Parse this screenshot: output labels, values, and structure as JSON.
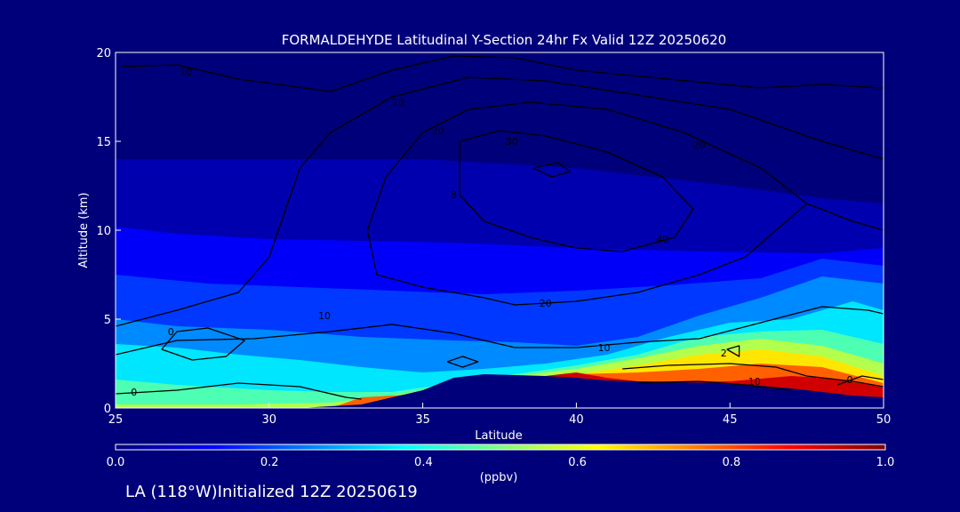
{
  "chart_data": {
    "type": "heatmap",
    "title": "FORMALDEHYDE Latitudinal Y-Section 24hr  Fx Valid 12Z 20250620",
    "xlabel": "Latitude",
    "ylabel": "Altitude (km)",
    "xlim": [
      25,
      50
    ],
    "ylim": [
      0,
      20
    ],
    "x_ticks": [
      "25",
      "30",
      "35",
      "40",
      "45",
      "50"
    ],
    "y_ticks": [
      "0",
      "5",
      "10",
      "15",
      "20"
    ],
    "colorbar": {
      "label": "(ppbv)",
      "range": [
        0.0,
        1.0
      ],
      "ticks": [
        "0.0",
        "0.2",
        "0.4",
        "0.6",
        "0.8",
        "1.0"
      ],
      "colormap": [
        "#00007a",
        "#0000ff",
        "#0080ff",
        "#00ffff",
        "#80ff80",
        "#ffff00",
        "#ff8000",
        "#ff0000",
        "#800000"
      ]
    },
    "field_bands": [
      {
        "level": 0.05,
        "boundary": [
          [
            25,
            14.0
          ],
          [
            30,
            14.0
          ],
          [
            35,
            14.0
          ],
          [
            40,
            13.5
          ],
          [
            45,
            12.5
          ],
          [
            48,
            11.8
          ],
          [
            50,
            11.5
          ]
        ]
      },
      {
        "level": 0.12,
        "boundary": [
          [
            25,
            10.2
          ],
          [
            27,
            9.8
          ],
          [
            30,
            9.5
          ],
          [
            33,
            9.4
          ],
          [
            36,
            9.3
          ],
          [
            40,
            9.0
          ],
          [
            44,
            8.8
          ],
          [
            48,
            8.7
          ],
          [
            50,
            9.0
          ]
        ]
      },
      {
        "level": 0.18,
        "boundary": [
          [
            25,
            7.5
          ],
          [
            28,
            7.0
          ],
          [
            31,
            6.8
          ],
          [
            34,
            6.6
          ],
          [
            37,
            6.4
          ],
          [
            40,
            6.6
          ],
          [
            43,
            6.9
          ],
          [
            46,
            7.3
          ],
          [
            48,
            8.4
          ],
          [
            50,
            8.0
          ]
        ]
      },
      {
        "level": 0.26,
        "boundary": [
          [
            25,
            5.0
          ],
          [
            27,
            4.6
          ],
          [
            30,
            4.4
          ],
          [
            33,
            4.0
          ],
          [
            36,
            3.8
          ],
          [
            38,
            3.7
          ],
          [
            40,
            3.5
          ],
          [
            42,
            4.0
          ],
          [
            44,
            5.2
          ],
          [
            46,
            6.2
          ],
          [
            48,
            7.4
          ],
          [
            50,
            7.0
          ]
        ]
      },
      {
        "level": 0.35,
        "boundary": [
          [
            25,
            3.6
          ],
          [
            27,
            3.4
          ],
          [
            29,
            3.0
          ],
          [
            31,
            2.7
          ],
          [
            33,
            2.3
          ],
          [
            35,
            2.0
          ],
          [
            37,
            2.2
          ],
          [
            39,
            2.5
          ],
          [
            41,
            3.0
          ],
          [
            43,
            4.0
          ],
          [
            45,
            4.8
          ],
          [
            47,
            5.0
          ],
          [
            49,
            6.0
          ],
          [
            50,
            5.5
          ]
        ]
      },
      {
        "level": 0.45,
        "boundary": [
          [
            25,
            1.6
          ],
          [
            27,
            1.3
          ],
          [
            30,
            1.0
          ],
          [
            32,
            0.9
          ],
          [
            34,
            0.9
          ],
          [
            36,
            1.4
          ],
          [
            38,
            1.9
          ],
          [
            40,
            2.4
          ],
          [
            42,
            3.0
          ],
          [
            44,
            4.0
          ],
          [
            46,
            4.3
          ],
          [
            48,
            4.4
          ],
          [
            50,
            3.6
          ]
        ]
      },
      {
        "level": 0.55,
        "boundary": [
          [
            25,
            0.2
          ],
          [
            29,
            0.2
          ],
          [
            32,
            0.3
          ],
          [
            34,
            0.7
          ],
          [
            36,
            1.3
          ],
          [
            38,
            1.8
          ],
          [
            40,
            2.2
          ],
          [
            42,
            2.8
          ],
          [
            44,
            3.5
          ],
          [
            46,
            3.9
          ],
          [
            48,
            3.5
          ],
          [
            50,
            2.5
          ]
        ]
      },
      {
        "level": 0.65,
        "boundary": [
          [
            32,
            0.0
          ],
          [
            33,
            0.3
          ],
          [
            35,
            0.8
          ],
          [
            38,
            1.4
          ],
          [
            40,
            1.9
          ],
          [
            42,
            2.4
          ],
          [
            44,
            3.0
          ],
          [
            46,
            3.3
          ],
          [
            48,
            2.9
          ],
          [
            50,
            1.8
          ]
        ]
      },
      {
        "level": 0.78,
        "boundary": [
          [
            32,
            0.0
          ],
          [
            33,
            0.6
          ],
          [
            35,
            0.8
          ],
          [
            38,
            1.4
          ],
          [
            40,
            1.9
          ],
          [
            42,
            2.0
          ],
          [
            44,
            2.2
          ],
          [
            46,
            2.5
          ],
          [
            48,
            2.3
          ],
          [
            50,
            1.4
          ]
        ]
      },
      {
        "level": 0.92,
        "boundary": [
          [
            38,
            1.6
          ],
          [
            40,
            2.0
          ],
          [
            41,
            1.7
          ],
          [
            42,
            1.5
          ],
          [
            45,
            1.5
          ],
          [
            47,
            1.8
          ],
          [
            48,
            1.7
          ],
          [
            50,
            1.2
          ]
        ]
      }
    ],
    "terrain": [
      [
        25,
        0
      ],
      [
        31,
        0
      ],
      [
        33,
        0.2
      ],
      [
        35,
        1.0
      ],
      [
        36,
        1.7
      ],
      [
        37,
        1.9
      ],
      [
        38,
        1.85
      ],
      [
        39,
        1.8
      ],
      [
        40,
        1.7
      ],
      [
        41,
        1.55
      ],
      [
        43,
        1.45
      ],
      [
        45,
        1.4
      ],
      [
        47,
        1.1
      ],
      [
        49,
        0.7
      ],
      [
        50,
        0.6
      ]
    ],
    "contours": [
      {
        "label": "10",
        "points": [
          [
            25.0,
            4.6
          ],
          [
            27.0,
            5.5
          ],
          [
            29.0,
            6.5
          ],
          [
            30.0,
            8.5
          ],
          [
            30.5,
            11
          ],
          [
            31.0,
            13.5
          ],
          [
            32.0,
            15.5
          ],
          [
            34.0,
            17.5
          ],
          [
            36.5,
            18.6
          ],
          [
            39.0,
            18.4
          ],
          [
            42.0,
            17.6
          ],
          [
            45.0,
            16.8
          ],
          [
            48.0,
            15.0
          ],
          [
            50.0,
            14.0
          ]
        ]
      },
      {
        "label": "10",
        "points": [
          [
            25.2,
            19.2
          ],
          [
            27,
            19.3
          ],
          [
            29,
            18.5
          ],
          [
            32,
            17.8
          ],
          [
            34,
            19.0
          ],
          [
            36,
            19.8
          ],
          [
            38,
            19.7
          ],
          [
            40,
            19.0
          ],
          [
            43,
            18.5
          ],
          [
            46,
            18.0
          ],
          [
            48,
            18.2
          ],
          [
            50,
            18.0
          ]
        ]
      },
      {
        "label": "20",
        "points": [
          [
            33.5,
            7.5
          ],
          [
            33.2,
            10
          ],
          [
            33.8,
            13
          ],
          [
            35,
            15.5
          ],
          [
            36.5,
            16.8
          ],
          [
            38.5,
            17.2
          ],
          [
            41,
            16.8
          ],
          [
            43.5,
            15.5
          ],
          [
            46.0,
            13.5
          ],
          [
            47.5,
            11.5
          ],
          [
            49.0,
            10.5
          ],
          [
            50.0,
            10.0
          ]
        ]
      },
      {
        "label": "20",
        "points": [
          [
            33.5,
            7.5
          ],
          [
            35,
            6.8
          ],
          [
            37,
            6.2
          ],
          [
            38,
            5.8
          ],
          [
            40,
            6.0
          ],
          [
            42,
            6.5
          ],
          [
            44,
            7.5
          ],
          [
            45.5,
            8.5
          ],
          [
            46.5,
            10
          ],
          [
            47.5,
            11.5
          ]
        ]
      },
      {
        "label": "30",
        "points": [
          [
            36.2,
            15
          ],
          [
            37.5,
            15.6
          ],
          [
            39,
            15.3
          ],
          [
            41,
            14.4
          ],
          [
            42.8,
            13.0
          ],
          [
            43.8,
            11.2
          ],
          [
            43.2,
            9.6
          ],
          [
            41.5,
            8.8
          ],
          [
            40,
            9.0
          ],
          [
            38.5,
            9.6
          ],
          [
            37.0,
            10.5
          ],
          [
            36.2,
            12.0
          ],
          [
            36.2,
            15
          ]
        ]
      },
      {
        "label": "30",
        "points": [
          [
            38.6,
            13.5
          ],
          [
            39.4,
            13.8
          ],
          [
            39.8,
            13.3
          ],
          [
            39.2,
            13.0
          ],
          [
            38.6,
            13.5
          ]
        ]
      },
      {
        "label": "10",
        "points": [
          [
            25.0,
            3.0
          ],
          [
            27.0,
            3.8
          ],
          [
            29.5,
            3.9
          ],
          [
            32.0,
            4.3
          ],
          [
            34.0,
            4.7
          ],
          [
            36.0,
            4.2
          ],
          [
            38.0,
            3.4
          ],
          [
            40.0,
            3.4
          ],
          [
            42.0,
            3.7
          ],
          [
            44.0,
            3.9
          ],
          [
            46.0,
            4.8
          ],
          [
            48.0,
            5.7
          ],
          [
            49.5,
            5.5
          ],
          [
            50.0,
            5.3
          ]
        ]
      },
      {
        "label": "0",
        "points": [
          [
            25.0,
            0.8
          ],
          [
            27.0,
            1.0
          ],
          [
            29.0,
            1.4
          ],
          [
            31.0,
            1.2
          ],
          [
            32.5,
            0.6
          ],
          [
            33.0,
            0.5
          ]
        ]
      },
      {
        "label": "0",
        "points": [
          [
            26.5,
            3.3
          ],
          [
            27.0,
            4.3
          ],
          [
            28.0,
            4.5
          ],
          [
            29.2,
            3.8
          ],
          [
            28.6,
            2.9
          ],
          [
            27.5,
            2.7
          ],
          [
            26.5,
            3.3
          ]
        ]
      },
      {
        "label": "10",
        "points": [
          [
            41.5,
            2.2
          ],
          [
            43.0,
            2.4
          ],
          [
            45.0,
            2.5
          ],
          [
            46.5,
            2.3
          ],
          [
            47.5,
            1.8
          ],
          [
            49.0,
            1.5
          ],
          [
            50.0,
            1.2
          ]
        ]
      },
      {
        "label": "10",
        "points": [
          [
            42.0,
            1.4
          ],
          [
            44.0,
            1.5
          ],
          [
            45.5,
            1.3
          ],
          [
            47.0,
            1.0
          ]
        ]
      },
      {
        "label": "0",
        "points": [
          [
            48.5,
            1.3
          ],
          [
            49.3,
            1.8
          ],
          [
            50.0,
            1.6
          ]
        ]
      },
      {
        "label": "2",
        "points": [
          [
            44.9,
            3.3
          ],
          [
            45.3,
            3.5
          ],
          [
            45.3,
            2.9
          ],
          [
            44.9,
            3.3
          ]
        ]
      },
      {
        "label": "10",
        "points": [
          [
            35.8,
            2.6
          ],
          [
            36.3,
            2.9
          ],
          [
            36.8,
            2.6
          ],
          [
            36.3,
            2.3
          ],
          [
            35.8,
            2.6
          ]
        ]
      }
    ],
    "contour_labels": [
      {
        "x": 27.3,
        "y": 18.9,
        "text": "10"
      },
      {
        "x": 34.2,
        "y": 17.2,
        "text": "10"
      },
      {
        "x": 35.5,
        "y": 15.6,
        "text": "20"
      },
      {
        "x": 37.9,
        "y": 15.0,
        "text": "30"
      },
      {
        "x": 44.0,
        "y": 14.8,
        "text": "20"
      },
      {
        "x": 36.0,
        "y": 12.0,
        "text": "8"
      },
      {
        "x": 42.8,
        "y": 9.5,
        "text": "40"
      },
      {
        "x": 39.0,
        "y": 5.9,
        "text": "20"
      },
      {
        "x": 31.8,
        "y": 5.2,
        "text": "10"
      },
      {
        "x": 40.9,
        "y": 3.4,
        "text": "10"
      },
      {
        "x": 26.8,
        "y": 4.3,
        "text": "0"
      },
      {
        "x": 25.6,
        "y": 0.9,
        "text": "0"
      },
      {
        "x": 44.8,
        "y": 3.1,
        "text": "2"
      },
      {
        "x": 45.8,
        "y": 1.5,
        "text": "10"
      },
      {
        "x": 48.9,
        "y": 1.6,
        "text": "0"
      }
    ]
  },
  "footer_text": "LA (118°W)Initialized 12Z 20250619"
}
